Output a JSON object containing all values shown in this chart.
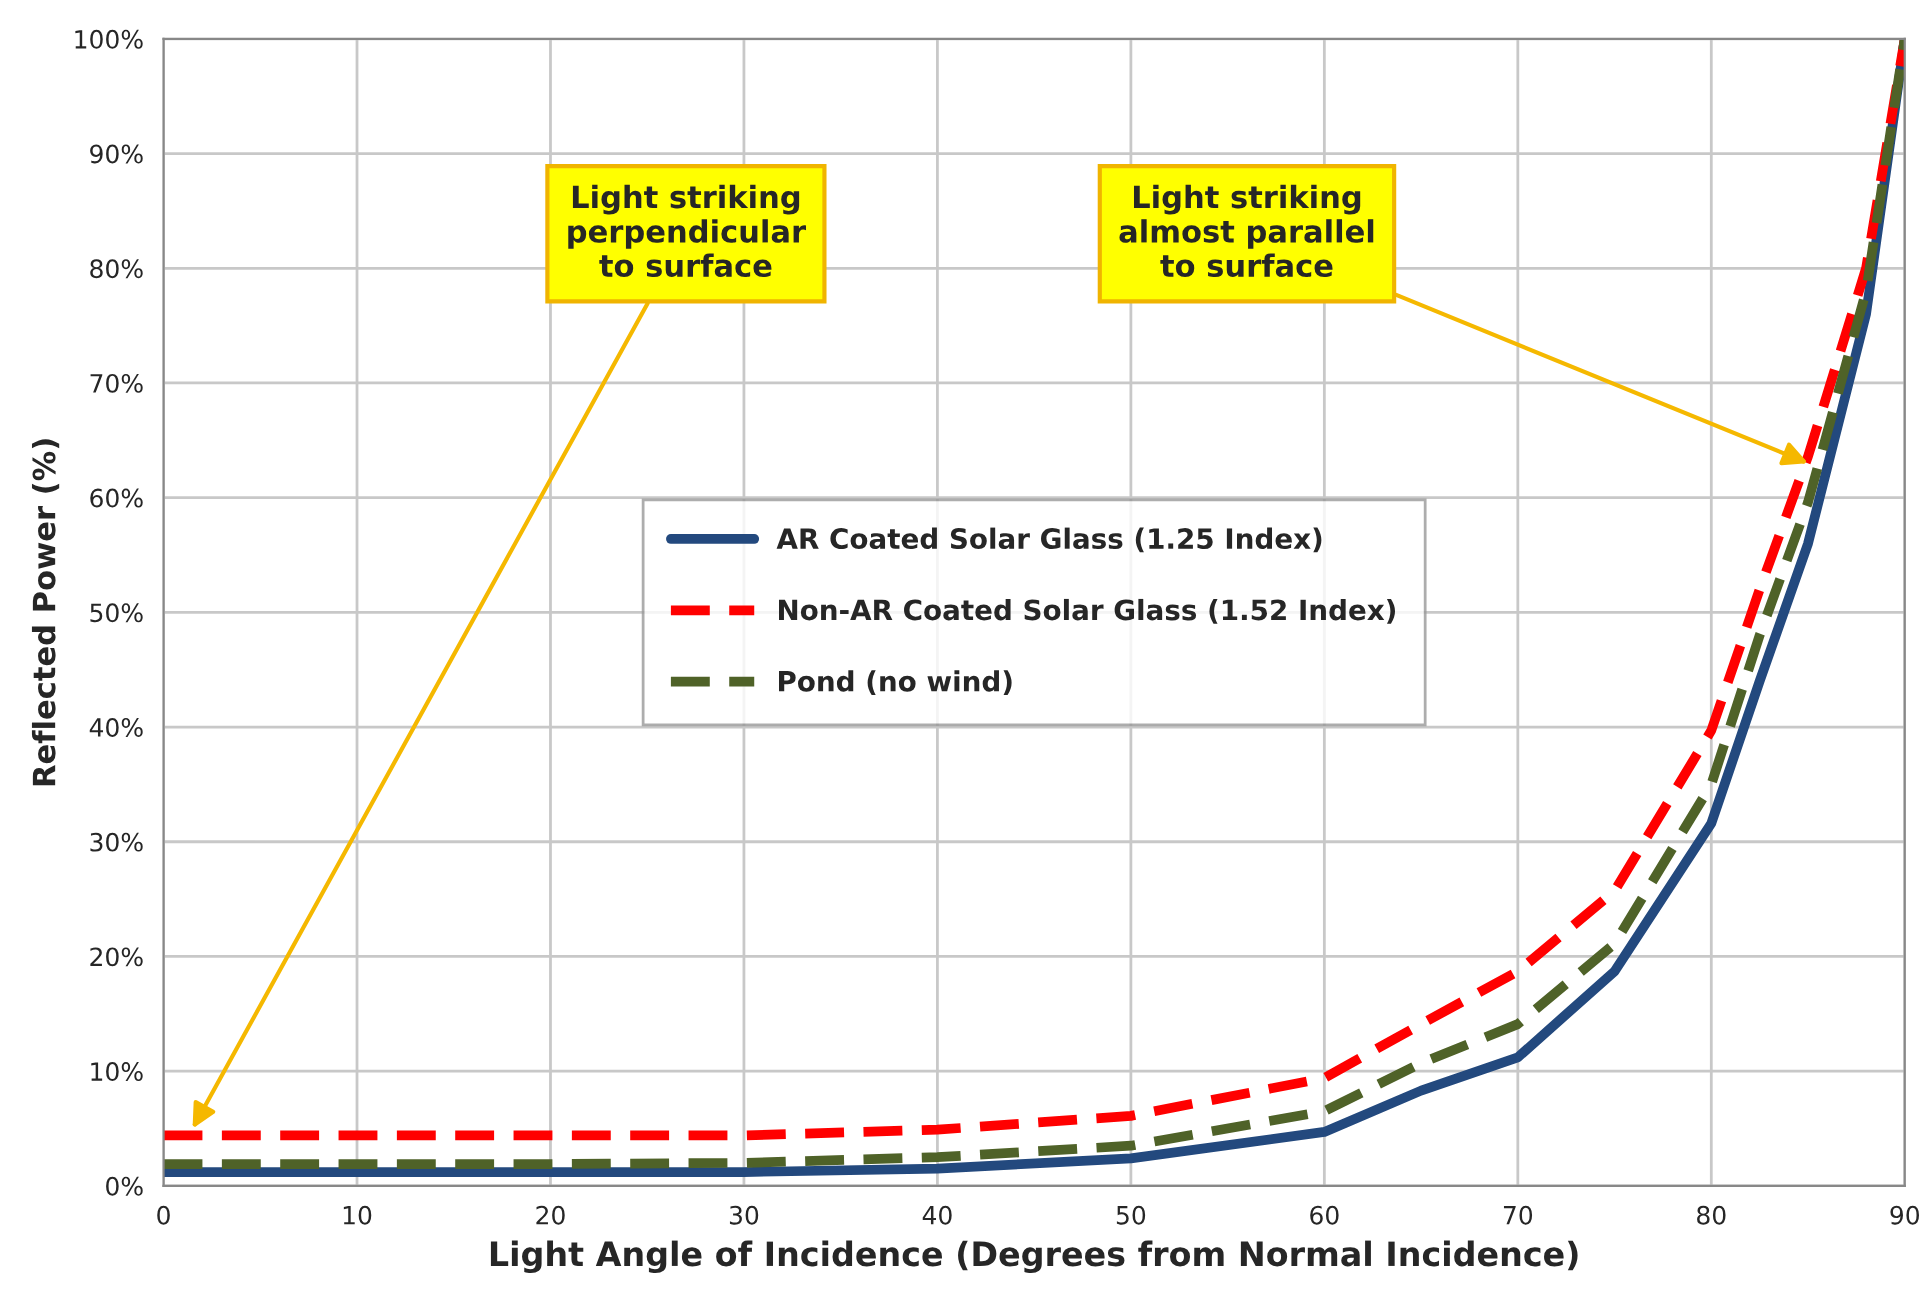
{
  "chart_data": {
    "type": "line",
    "xlabel": "Light Angle of Incidence (Degrees from Normal Incidence)",
    "ylabel": "Reflected Power (%)",
    "xlim": [
      0,
      90
    ],
    "xticks": [
      0,
      10,
      20,
      30,
      40,
      50,
      60,
      70,
      80,
      90
    ],
    "ylim": [
      0,
      100
    ],
    "yticks": [
      {
        "value": 0,
        "label": "0%"
      },
      {
        "value": 10,
        "label": "10%"
      },
      {
        "value": 20,
        "label": "20%"
      },
      {
        "value": 30,
        "label": "30%"
      },
      {
        "value": 40,
        "label": "40%"
      },
      {
        "value": 50,
        "label": "50%"
      },
      {
        "value": 60,
        "label": "60%"
      },
      {
        "value": 70,
        "label": "70%"
      },
      {
        "value": 80,
        "label": "80%"
      },
      {
        "value": 90,
        "label": "90%"
      },
      {
        "value": 100,
        "label": "100%"
      }
    ],
    "x": [
      0,
      10,
      20,
      30,
      40,
      50,
      60,
      65,
      70,
      75,
      80,
      82.5,
      85,
      88,
      90
    ],
    "series": [
      {
        "name": "AR Coated Solar Glass (1.25 Index)",
        "color": "#23497e",
        "line_style": "solid",
        "values": [
          1.2,
          1.2,
          1.2,
          1.2,
          1.5,
          2.4,
          4.7,
          8.3,
          11.2,
          18.7,
          31.6,
          44,
          56,
          76,
          100
        ]
      },
      {
        "name": "Non-AR Coated Solar Glass (1.52 Index)",
        "color": "#ff0000",
        "line_style": "dashed",
        "values": [
          4.4,
          4.4,
          4.4,
          4.4,
          4.9,
          6.1,
          9.4,
          14.1,
          18.7,
          25.7,
          39.7,
          52,
          63.6,
          80,
          100
        ]
      },
      {
        "name": "Pond (no wind)",
        "color": "#4f6228",
        "line_style": "dashed",
        "values": [
          1.9,
          1.9,
          1.9,
          2.0,
          2.5,
          3.5,
          6.5,
          10.7,
          14.1,
          21.1,
          35,
          48,
          59.6,
          78,
          100
        ]
      }
    ],
    "grid": true,
    "legend": "center",
    "annotations": [
      {
        "text": "Light striking\nperpendicular\nto surface",
        "x": 1.5,
        "y": 5
      },
      {
        "text": "Light striking\nalmost parallel\nto surface",
        "x": 85,
        "y": 63
      }
    ]
  }
}
